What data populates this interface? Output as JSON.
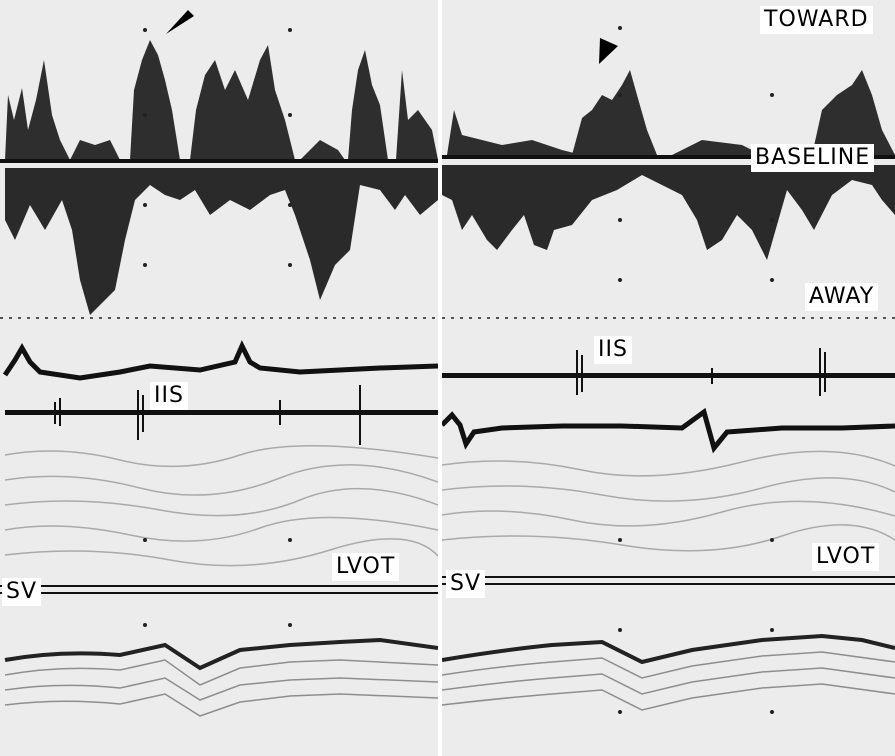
{
  "labels": {
    "toward": "TOWARD",
    "baseline": "BASELINE",
    "away": "AWAY",
    "iis_left": "IIS",
    "iis_right": "IIS",
    "lvot_left": "LVOT",
    "lvot_right": "LVOT",
    "sv_left": "SV",
    "sv_right": "SV"
  },
  "icons": {
    "left_marker": "arrowhead-icon",
    "right_marker": "arrowhead-icon"
  },
  "colors": {
    "trace": "#111111",
    "background": "#ececec",
    "label_bg": "#ffffff"
  }
}
